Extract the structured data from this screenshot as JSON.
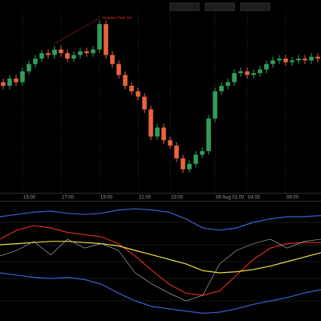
{
  "chart_data": [
    {
      "type": "candlestick",
      "annotation": "Negative Rate Div",
      "up_color": "#2f9e5a",
      "down_color": "#e8643c",
      "ylim": [
        0,
        100
      ],
      "categories": [
        null,
        null,
        null,
        "15:00",
        null,
        null,
        null,
        null,
        null,
        "17:00",
        null,
        null,
        null,
        null,
        null,
        "19:00",
        null,
        null,
        null,
        null,
        null,
        "21:00",
        null,
        null,
        null,
        null,
        "23:00",
        null,
        null,
        null,
        null,
        null,
        null,
        "06 Aug 01:00",
        null,
        null,
        null,
        null,
        "04:00",
        null,
        null,
        null,
        null,
        null,
        "06:00",
        null,
        null,
        null,
        null,
        null
      ],
      "open": [
        60,
        58,
        62,
        60,
        66,
        70,
        73,
        76,
        75,
        78,
        76,
        73,
        75,
        77,
        76,
        78,
        92,
        75,
        70,
        64,
        58,
        55,
        52,
        45,
        30,
        35,
        28,
        25,
        18,
        12,
        15,
        20,
        22,
        40,
        55,
        58,
        60,
        65,
        66,
        64,
        65,
        67,
        70,
        72,
        73,
        71,
        72,
        73,
        72,
        74
      ],
      "high": [
        62,
        64,
        64,
        68,
        72,
        75,
        78,
        78,
        80,
        80,
        78,
        77,
        79,
        79,
        80,
        94,
        94,
        77,
        72,
        66,
        60,
        57,
        54,
        47,
        37,
        37,
        30,
        27,
        20,
        17,
        22,
        24,
        42,
        57,
        60,
        62,
        67,
        68,
        68,
        67,
        69,
        72,
        74,
        75,
        75,
        74,
        75,
        75,
        76,
        76
      ],
      "low": [
        56,
        56,
        58,
        58,
        64,
        68,
        71,
        73,
        73,
        74,
        71,
        71,
        73,
        74,
        74,
        76,
        73,
        68,
        62,
        56,
        53,
        50,
        43,
        28,
        28,
        26,
        23,
        16,
        10,
        10,
        13,
        18,
        20,
        38,
        53,
        56,
        58,
        63,
        62,
        62,
        63,
        65,
        68,
        70,
        69,
        69,
        70,
        70,
        70,
        71
      ],
      "close": [
        58,
        62,
        60,
        66,
        70,
        73,
        76,
        75,
        78,
        76,
        73,
        75,
        77,
        76,
        78,
        92,
        75,
        70,
        64,
        58,
        55,
        52,
        45,
        30,
        35,
        28,
        25,
        18,
        12,
        15,
        20,
        22,
        40,
        55,
        58,
        60,
        65,
        66,
        64,
        65,
        67,
        70,
        72,
        73,
        71,
        72,
        73,
        72,
        74,
        73
      ]
    },
    {
      "type": "line",
      "ylim": [
        0,
        100
      ],
      "series": [
        {
          "color": "#3a5fd0",
          "values": [
            90,
            92,
            94,
            95,
            93,
            92,
            93,
            96,
            97,
            96,
            94,
            88,
            80,
            78,
            80,
            85,
            88,
            90,
            90,
            91
          ]
        },
        {
          "color": "#3a5fd0",
          "values": [
            40,
            38,
            36,
            35,
            36,
            34,
            30,
            22,
            15,
            10,
            8,
            6,
            4,
            5,
            8,
            12,
            15,
            18,
            22,
            25
          ]
        },
        {
          "color": "#d42a1e",
          "values": [
            70,
            78,
            82,
            80,
            76,
            74,
            72,
            66,
            55,
            42,
            30,
            22,
            20,
            24,
            38,
            52,
            62,
            66,
            67,
            67
          ]
        },
        {
          "color": "#e8e040",
          "values": [
            65,
            66,
            67,
            68,
            68,
            67,
            66,
            64,
            60,
            56,
            52,
            48,
            42,
            40,
            41,
            43,
            46,
            50,
            54,
            58
          ]
        },
        {
          "color": "#bbbbbb",
          "values": [
            55,
            60,
            68,
            56,
            70,
            62,
            66,
            60,
            40,
            30,
            22,
            15,
            20,
            48,
            60,
            66,
            70,
            62,
            68,
            70
          ]
        }
      ]
    }
  ]
}
